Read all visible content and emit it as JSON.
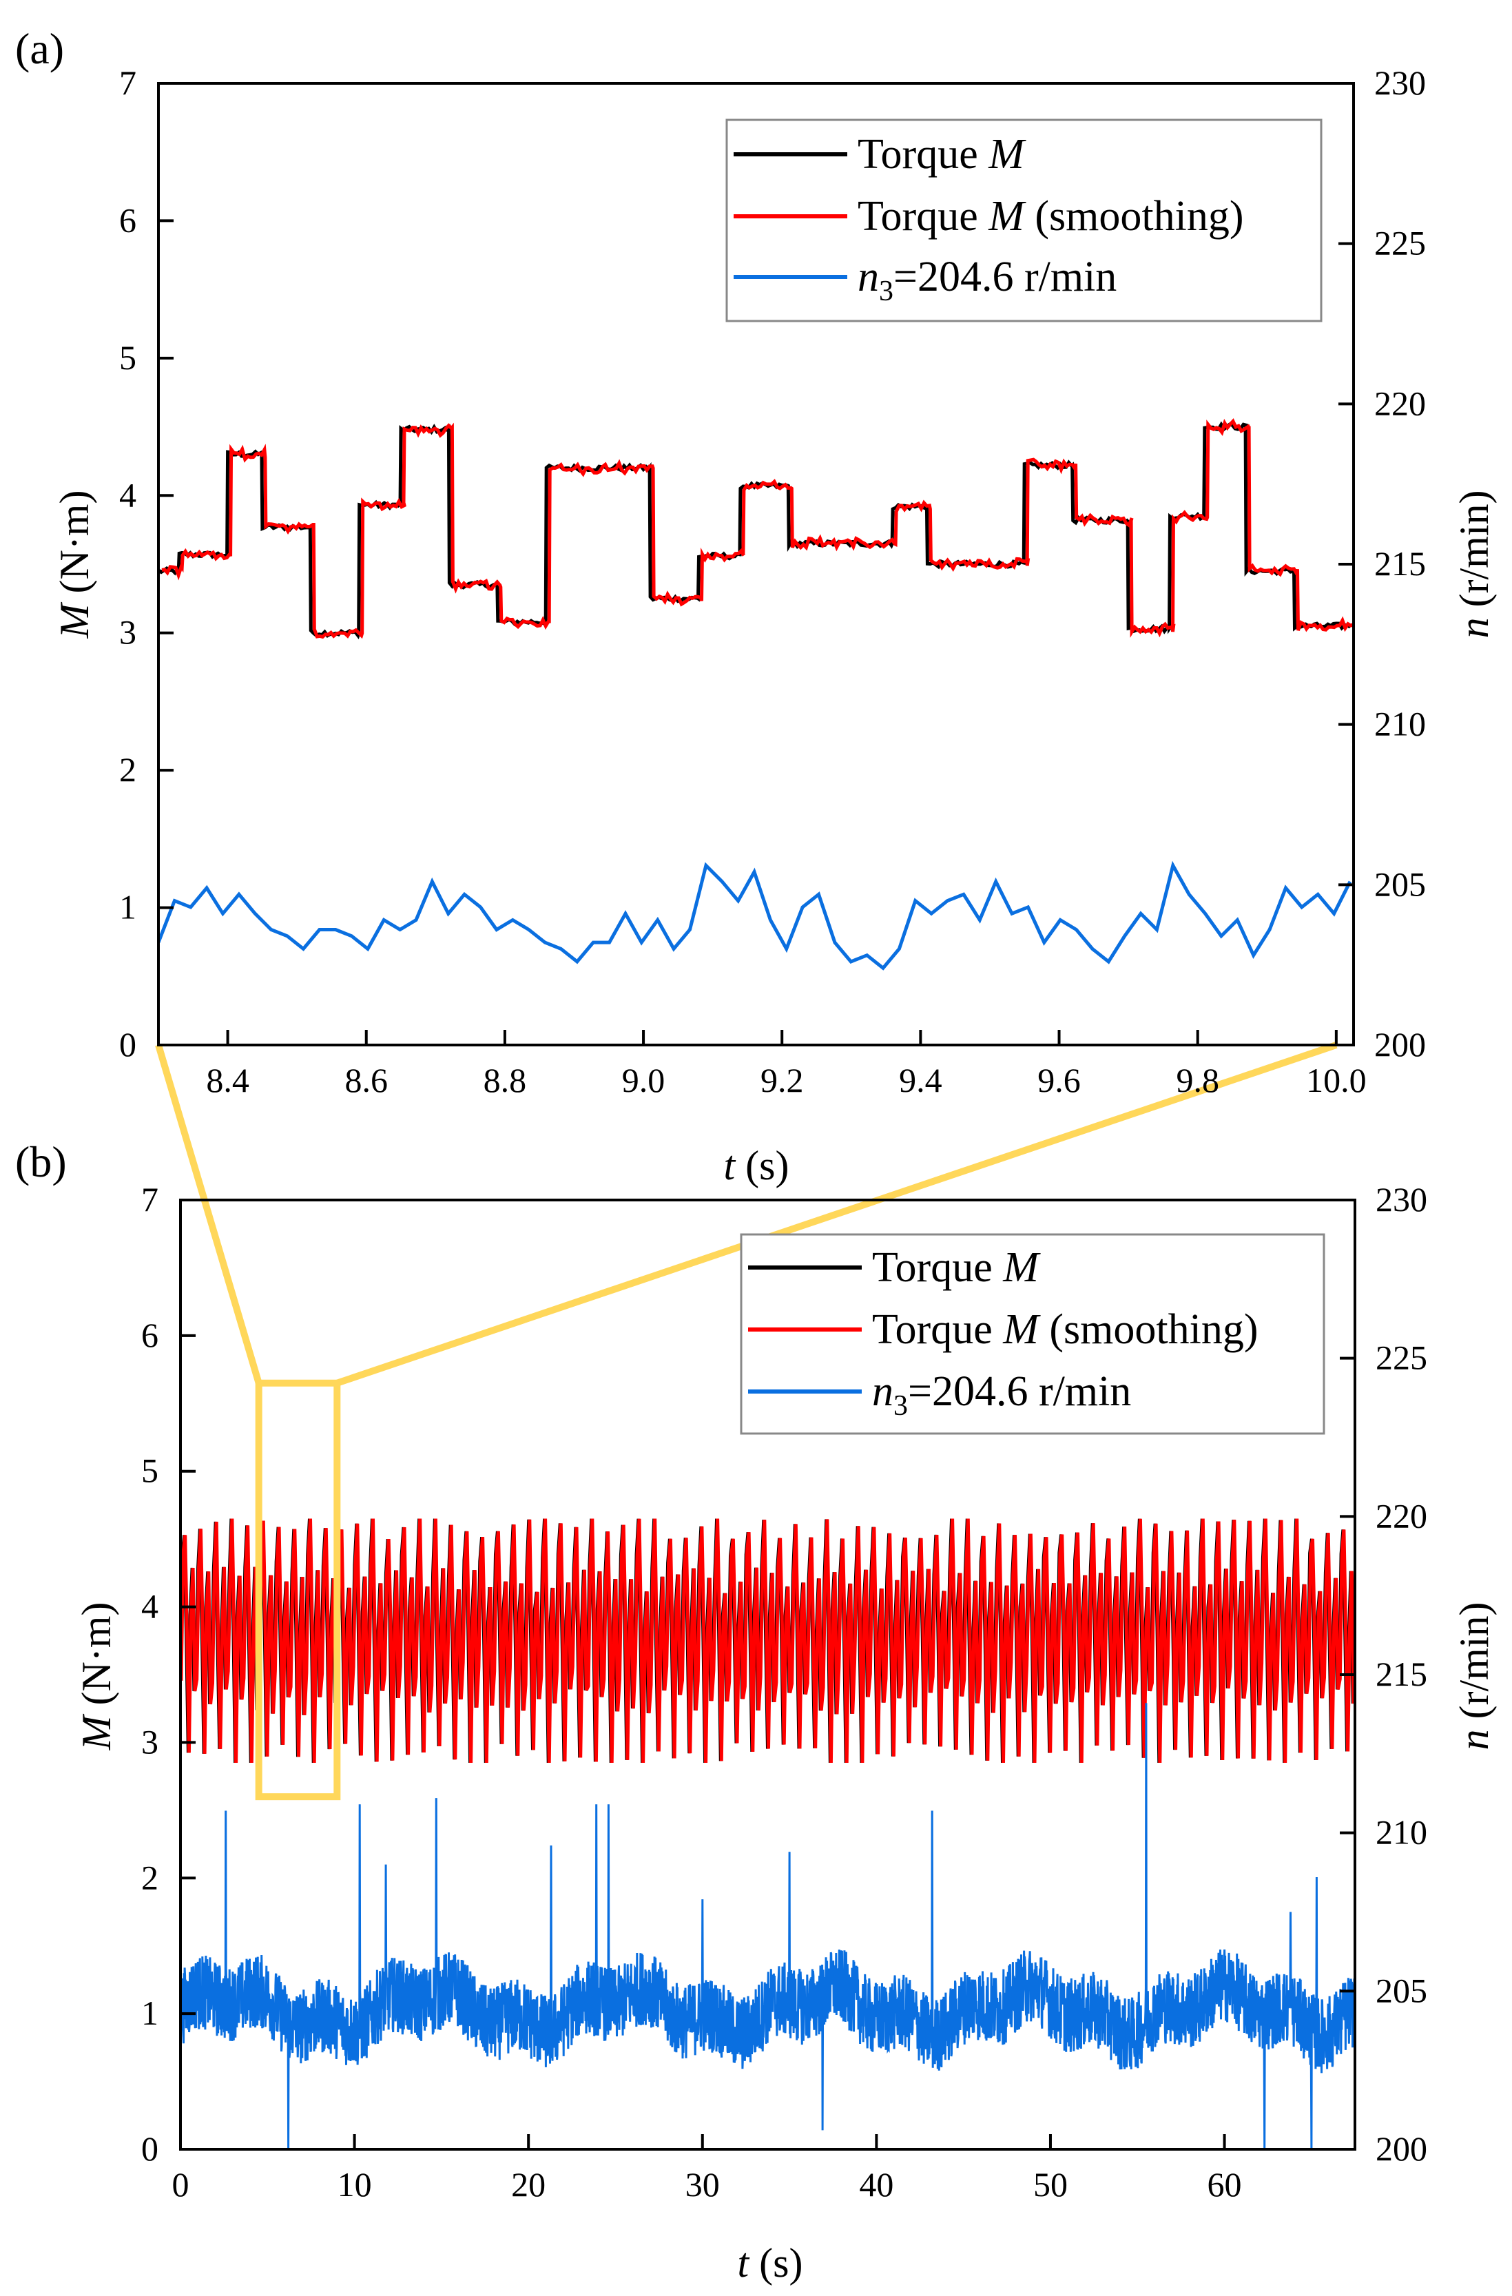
{
  "colors": {
    "torque": "#000000",
    "smoothing": "#FF0000",
    "speed": "#0A6FE0",
    "zoom": "#FFD75A"
  },
  "chart_data": [
    {
      "panel": "(a)",
      "type": "line",
      "xlabel_var": "t",
      "xlabel_unit": " (s)",
      "ylabel_var": "M",
      "ylabel_unit": " (N·m)",
      "y2label_var": "n",
      "y2label_unit": " (r/min)",
      "xlim": [
        8.3,
        10.025
      ],
      "ylim": [
        0,
        7
      ],
      "y2lim": [
        200,
        230
      ],
      "xticks": [
        "8.4",
        "8.6",
        "8.8",
        "9.0",
        "9.2",
        "9.4",
        "9.6",
        "9.8",
        "10.0"
      ],
      "yticks": [
        "0",
        "1",
        "2",
        "3",
        "4",
        "5",
        "6",
        "7"
      ],
      "y2ticks": [
        "200",
        "205",
        "210",
        "215",
        "220",
        "225",
        "230"
      ],
      "legend": {
        "position": "top-right",
        "entries": [
          {
            "pre": "Torque ",
            "ital": "M",
            "post": ""
          },
          {
            "pre": "Torque ",
            "ital": "M",
            "post": " (smoothing)"
          },
          {
            "pre": "",
            "ital": "n",
            "sub": "3",
            "post": "=204.6 r/min"
          }
        ]
      },
      "torque_steps": [
        [
          8.3,
          3.45
        ],
        [
          8.33,
          3.57
        ],
        [
          8.4,
          4.3
        ],
        [
          8.45,
          3.77
        ],
        [
          8.52,
          3.0
        ],
        [
          8.59,
          3.93
        ],
        [
          8.65,
          4.48
        ],
        [
          8.72,
          3.35
        ],
        [
          8.79,
          3.08
        ],
        [
          8.86,
          4.2
        ],
        [
          9.01,
          3.25
        ],
        [
          9.08,
          3.56
        ],
        [
          9.14,
          4.07
        ],
        [
          9.21,
          3.65
        ],
        [
          9.36,
          3.92
        ],
        [
          9.41,
          3.5
        ],
        [
          9.55,
          4.22
        ],
        [
          9.62,
          3.82
        ],
        [
          9.7,
          3.03
        ],
        [
          9.76,
          3.85
        ],
        [
          9.81,
          4.5
        ],
        [
          9.87,
          3.45
        ],
        [
          9.94,
          3.05
        ],
        [
          10.02,
          3.4
        ]
      ],
      "speed_n": [
        203.2,
        204.5,
        204.3,
        204.9,
        204.1,
        204.7,
        204.1,
        203.6,
        203.4,
        203.0,
        203.6,
        203.6,
        203.4,
        203.0,
        203.9,
        203.6,
        203.9,
        205.1,
        204.1,
        204.7,
        204.3,
        203.6,
        203.9,
        203.6,
        203.2,
        203.0,
        202.6,
        203.2,
        203.2,
        204.1,
        203.2,
        203.9,
        203.0,
        203.6,
        205.6,
        205.1,
        204.5,
        205.4,
        203.9,
        203.0,
        204.3,
        204.7,
        203.2,
        202.6,
        202.8,
        202.4,
        203.0,
        204.5,
        204.1,
        204.5,
        204.7,
        203.9,
        205.1,
        204.1,
        204.3,
        203.2,
        203.9,
        203.6,
        203.0,
        202.6,
        203.4,
        204.1,
        203.6,
        205.6,
        204.7,
        204.1,
        203.4,
        203.9,
        202.8,
        203.6,
        204.9,
        204.3,
        204.7,
        204.1,
        205.1
      ]
    },
    {
      "panel": "(b)",
      "type": "line",
      "xlabel_var": "t",
      "xlabel_unit": " (s)",
      "ylabel_var": "M",
      "ylabel_unit": " (N·m)",
      "y2label_var": "n",
      "y2label_unit": " (r/min)",
      "xlim": [
        0,
        67.5
      ],
      "ylim": [
        0,
        7
      ],
      "y2lim": [
        200,
        230
      ],
      "xticks": [
        "0",
        "10",
        "20",
        "30",
        "40",
        "50",
        "60"
      ],
      "yticks": [
        "0",
        "1",
        "2",
        "3",
        "4",
        "5",
        "6",
        "7"
      ],
      "y2ticks": [
        "200",
        "205",
        "210",
        "215",
        "220",
        "225",
        "230"
      ],
      "legend": {
        "position": "top-right",
        "entries": [
          {
            "pre": "Torque ",
            "ital": "M",
            "post": ""
          },
          {
            "pre": "Torque ",
            "ital": "M",
            "post": " (smoothing)"
          },
          {
            "pre": "",
            "ital": "n",
            "sub": "3",
            "post": "=204.6 r/min"
          }
        ]
      },
      "torque_range": [
        2.9,
        4.6
      ],
      "torque_period_s": 0.9,
      "speed_mean_n": 204.4,
      "speed_noise_n": 1.5,
      "speed_spikes": [
        [
          2.6,
          210.7
        ],
        [
          10.3,
          210.9
        ],
        [
          11.8,
          209.0
        ],
        [
          14.7,
          211.1
        ],
        [
          21.3,
          209.6
        ],
        [
          23.9,
          210.9
        ],
        [
          24.6,
          210.9
        ],
        [
          30.0,
          207.9
        ],
        [
          35.0,
          209.4
        ],
        [
          43.2,
          210.7
        ],
        [
          55.5,
          214.1
        ],
        [
          63.8,
          207.5
        ],
        [
          65.3,
          208.6
        ],
        [
          6.2,
          200.0
        ],
        [
          36.9,
          200.6
        ],
        [
          62.3,
          200.0
        ],
        [
          65.0,
          200.0
        ]
      ],
      "zoom_box": {
        "t": [
          4.5,
          9.0
        ],
        "M": [
          2.6,
          5.65
        ]
      }
    }
  ]
}
